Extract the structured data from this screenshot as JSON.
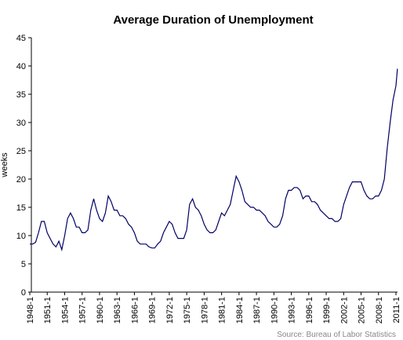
{
  "chart_data": {
    "type": "line",
    "title": "Average Duration of Unemployment",
    "y_label": "weeks",
    "source": "Source: Bureau of Labor Statistics",
    "x": [
      "1948-1",
      "1948-7",
      "1949-1",
      "1949-7",
      "1950-1",
      "1950-7",
      "1951-1",
      "1951-7",
      "1952-1",
      "1952-7",
      "1953-1",
      "1953-7",
      "1954-1",
      "1954-7",
      "1955-1",
      "1955-7",
      "1956-1",
      "1956-7",
      "1957-1",
      "1957-7",
      "1958-1",
      "1958-7",
      "1959-1",
      "1959-7",
      "1960-1",
      "1960-7",
      "1961-1",
      "1961-7",
      "1962-1",
      "1962-7",
      "1963-1",
      "1963-7",
      "1964-1",
      "1964-7",
      "1965-1",
      "1965-7",
      "1966-1",
      "1966-7",
      "1967-1",
      "1967-7",
      "1968-1",
      "1968-7",
      "1969-1",
      "1969-7",
      "1970-1",
      "1970-7",
      "1971-1",
      "1971-7",
      "1972-1",
      "1972-7",
      "1973-1",
      "1973-7",
      "1974-1",
      "1974-7",
      "1975-1",
      "1975-7",
      "1976-1",
      "1976-7",
      "1977-1",
      "1977-7",
      "1978-1",
      "1978-7",
      "1979-1",
      "1979-7",
      "1980-1",
      "1980-7",
      "1981-1",
      "1981-7",
      "1982-1",
      "1982-7",
      "1983-1",
      "1983-7",
      "1984-1",
      "1984-7",
      "1985-1",
      "1985-7",
      "1986-1",
      "1986-7",
      "1987-1",
      "1987-7",
      "1988-1",
      "1988-7",
      "1989-1",
      "1989-7",
      "1990-1",
      "1990-7",
      "1991-1",
      "1991-7",
      "1992-1",
      "1992-7",
      "1993-1",
      "1993-7",
      "1994-1",
      "1994-7",
      "1995-1",
      "1995-7",
      "1996-1",
      "1996-7",
      "1997-1",
      "1997-7",
      "1998-1",
      "1998-7",
      "1999-1",
      "1999-7",
      "2000-1",
      "2000-7",
      "2001-1",
      "2001-7",
      "2002-1",
      "2002-7",
      "2003-1",
      "2003-7",
      "2004-1",
      "2004-7",
      "2005-1",
      "2005-7",
      "2006-1",
      "2006-7",
      "2007-1",
      "2007-7",
      "2008-1",
      "2008-7",
      "2009-1",
      "2009-7",
      "2010-1",
      "2010-7",
      "2011-1",
      "2011-4"
    ],
    "series": [
      {
        "name": "Average duration",
        "color": "#000066",
        "values": [
          8.5,
          8.5,
          8.8,
          10.5,
          12.5,
          12.5,
          10.5,
          9.5,
          8.5,
          8,
          9,
          7.5,
          10,
          13,
          14,
          13,
          11.5,
          11.5,
          10.5,
          10.5,
          11,
          14.5,
          16.5,
          14.5,
          13,
          12.5,
          14,
          17,
          16,
          14.5,
          14.5,
          13.5,
          13.5,
          13,
          12,
          11.5,
          10.5,
          9,
          8.5,
          8.5,
          8.5,
          8,
          7.8,
          7.8,
          8.5,
          9,
          10.5,
          11.5,
          12.5,
          12,
          10.5,
          9.5,
          9.5,
          9.5,
          11,
          15.5,
          16.5,
          15,
          14.5,
          13.5,
          12,
          11,
          10.5,
          10.5,
          11,
          12.5,
          14,
          13.5,
          14.5,
          15.5,
          18,
          20.5,
          19.5,
          18,
          16,
          15.5,
          15,
          15,
          14.5,
          14.5,
          14,
          13.5,
          12.5,
          12,
          11.5,
          11.5,
          12,
          13.5,
          16.5,
          18,
          18,
          18.5,
          18.5,
          18,
          16.5,
          17,
          17,
          16,
          16,
          15.5,
          14.5,
          14,
          13.5,
          13,
          13,
          12.5,
          12.5,
          13,
          15.5,
          17,
          18.5,
          19.5,
          19.5,
          19.5,
          19.5,
          18,
          17,
          16.5,
          16.5,
          17,
          17,
          18,
          20,
          25.5,
          30,
          34,
          36.5,
          39.5
        ]
      }
    ],
    "xticks": [
      "1948-1",
      "1951-1",
      "1954-1",
      "1957-1",
      "1960-1",
      "1963-1",
      "1966-1",
      "1969-1",
      "1972-1",
      "1975-1",
      "1978-1",
      "1981-1",
      "1984-1",
      "1987-1",
      "1990-1",
      "1993-1",
      "1996-1",
      "1999-1",
      "2002-1",
      "2005-1",
      "2008-1",
      "2011-1"
    ],
    "ylim": [
      0,
      45
    ],
    "yticks": [
      0,
      5,
      10,
      15,
      20,
      25,
      30,
      35,
      40,
      45
    ]
  }
}
